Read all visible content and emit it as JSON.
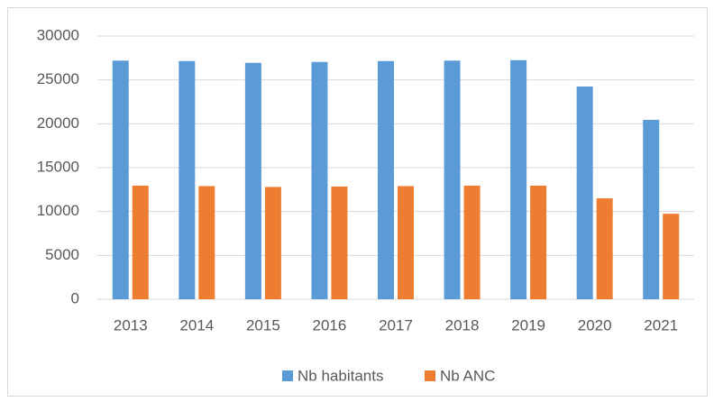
{
  "chart_data": {
    "type": "bar",
    "categories": [
      "2013",
      "2014",
      "2015",
      "2016",
      "2017",
      "2018",
      "2019",
      "2020",
      "2021"
    ],
    "series": [
      {
        "name": "Nb habitants",
        "color": "#5b9bd5",
        "values": [
          27200,
          27150,
          26950,
          27050,
          27150,
          27200,
          27250,
          24250,
          20450
        ]
      },
      {
        "name": "Nb ANC",
        "color": "#ed7d31",
        "values": [
          12950,
          12900,
          12800,
          12850,
          12900,
          12950,
          12950,
          11500,
          9750
        ]
      }
    ],
    "ylim": [
      0,
      30000
    ],
    "yticks": [
      0,
      5000,
      10000,
      15000,
      20000,
      25000,
      30000
    ],
    "grid": true,
    "legend": "bottom"
  }
}
